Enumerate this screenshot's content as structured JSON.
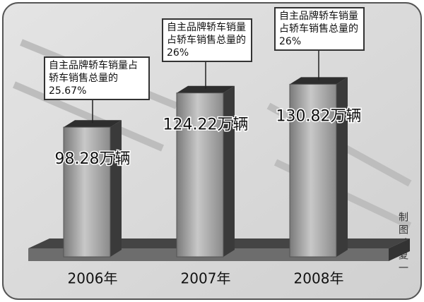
{
  "chart_data": {
    "type": "bar3d",
    "categories": [
      "2006年",
      "2007年",
      "2008年"
    ],
    "values": [
      98.28,
      124.22,
      130.82
    ],
    "value_labels": [
      "98.28万辆",
      "124.22万辆",
      "130.82万辆"
    ],
    "color": "#9a9a9a",
    "annotations": [
      "自主品牌轿车销量占轿车销售总量的25.67%",
      "自主品牌轿车销量占轿车销售总量的26%",
      "自主品牌轿车销量占轿车销售总量的26%"
    ],
    "credit": "制图：夏一"
  }
}
